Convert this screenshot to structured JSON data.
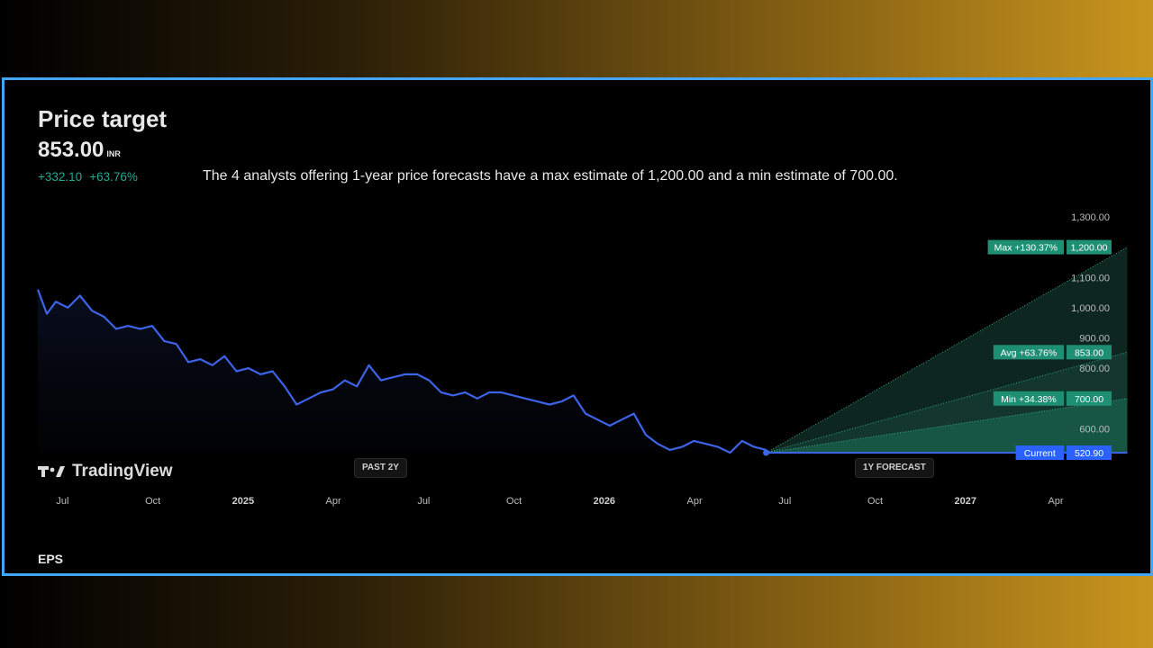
{
  "header": {
    "title": "Price target",
    "price": "853.00",
    "currency": "INR",
    "change_abs": "+332.10",
    "change_pct": "+63.76%",
    "description": "The 4 analysts offering 1-year price forecasts have a max estimate of 1,200.00 and a min estimate of 700.00."
  },
  "branding": {
    "logo_text": "TradingView",
    "logo_icon": "tradingview-logo-icon"
  },
  "period_labels": {
    "past": "PAST 2Y",
    "forecast": "1Y FORECAST"
  },
  "footer": {
    "section_label": "EPS"
  },
  "colors": {
    "line": "#3d63e8",
    "accent_green": "#1f8f74",
    "positive_text": "#22ab94",
    "current_badge": "#2962ff",
    "border": "#42a5f5"
  },
  "chart_data": {
    "type": "line",
    "xlabel": "",
    "ylabel": "",
    "x_ticks": [
      "Jul",
      "Oct",
      "2025",
      "Apr",
      "Jul",
      "Oct",
      "2026",
      "Apr",
      "Jul",
      "Oct",
      "2027",
      "Apr"
    ],
    "y_ticks": [
      "1,300.00",
      "1,100.00",
      "1,000.00",
      "900.00",
      "800.00",
      "600.00"
    ],
    "ylim": [
      500,
      1300
    ],
    "x_range_months": [
      0,
      34
    ],
    "history": {
      "x_months": [
        0,
        0.3,
        0.6,
        1.0,
        1.4,
        1.8,
        2.2,
        2.6,
        3.0,
        3.4,
        3.8,
        4.2,
        4.6,
        5.0,
        5.4,
        5.8,
        6.2,
        6.6,
        7.0,
        7.4,
        7.8,
        8.2,
        8.6,
        9.0,
        9.4,
        9.8,
        10.2,
        10.6,
        11.0,
        11.4,
        11.8,
        12.2,
        12.6,
        13.0,
        13.4,
        13.8,
        14.2,
        14.6,
        15.0,
        15.4,
        15.8,
        16.2,
        16.6,
        17.0,
        17.4,
        17.8,
        18.2,
        18.6,
        19.0,
        19.4,
        19.8,
        20.2,
        20.6,
        21.0,
        21.4,
        21.8,
        22.2,
        22.6,
        23.0,
        23.4,
        23.8,
        24.2,
        24.6,
        25.0,
        25.4,
        25.8,
        26.2,
        26.6,
        27.0,
        27.4,
        27.8,
        28.2
      ],
      "values": [
        1060,
        980,
        1020,
        1000,
        1040,
        990,
        970,
        930,
        940,
        930,
        940,
        890,
        880,
        820,
        830,
        810,
        840,
        790,
        800,
        780,
        790,
        740,
        680,
        700,
        720,
        730,
        760,
        740,
        810,
        760,
        770,
        780,
        780,
        760,
        720,
        710,
        720,
        700,
        720,
        720,
        710,
        700,
        690,
        680,
        690,
        710,
        650,
        630,
        610,
        630,
        650,
        580,
        550,
        530,
        540,
        560,
        550,
        540,
        520.9,
        560,
        540,
        530,
        530,
        520.9,
        520.9,
        520.9,
        520.9,
        520.9,
        520.9,
        520.9,
        520.9,
        520.9
      ]
    },
    "forecast": {
      "start_value": 520.9,
      "horizon_months": 12,
      "max": {
        "value": 1200,
        "label": "Max +130.37%",
        "price_label": "1,200.00"
      },
      "avg": {
        "value": 853,
        "label": "Avg +63.76%",
        "price_label": "853.00"
      },
      "min": {
        "value": 700,
        "label": "Min +34.38%",
        "price_label": "700.00"
      },
      "current": {
        "value": 520.9,
        "label": "Current",
        "price_label": "520.90"
      }
    },
    "grid": false,
    "legend": "none"
  }
}
